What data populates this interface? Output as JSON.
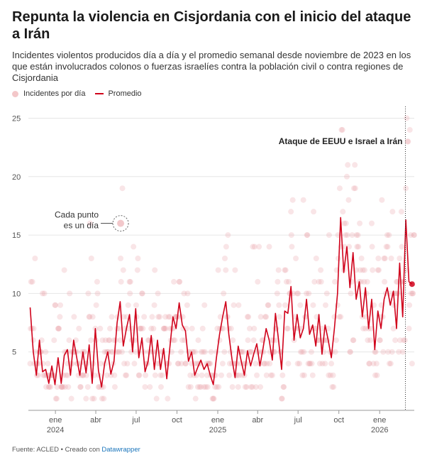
{
  "title": "Repunta la violencia en Cisjordania con el inicio del ataque a Irán",
  "subtitle": "Incidentes violentos producidos día a día y el promedio semanal desde noviembre de 2023 en los que están involucrados colonos o fuerzas israelíes contra la población civil o contra regiones de Cisjordania",
  "legend": {
    "dots": "Incidentes por día",
    "line": "Promedio"
  },
  "footer": {
    "source": "Fuente: ACLED • Creado con ",
    "tool": "Datawrapper"
  },
  "colors": {
    "line": "#d0021b",
    "dots": "#eaa3a8",
    "grid": "#e6e6e6"
  },
  "chart_data": {
    "type": "scatter",
    "ylim": [
      0,
      26
    ],
    "xlim": [
      "2023-11-01",
      "2026-03-20"
    ],
    "grid": "horizontal",
    "legend_position": "top-left",
    "yticks": [
      5,
      10,
      15,
      20,
      25
    ],
    "xticks": [
      {
        "date": "2024-01-01",
        "label": "ene",
        "sub": "2024"
      },
      {
        "date": "2024-04-01",
        "label": "abr",
        "sub": ""
      },
      {
        "date": "2024-07-01",
        "label": "jul",
        "sub": ""
      },
      {
        "date": "2024-10-01",
        "label": "oct",
        "sub": ""
      },
      {
        "date": "2025-01-01",
        "label": "ene",
        "sub": "2025"
      },
      {
        "date": "2025-04-01",
        "label": "abr",
        "sub": ""
      },
      {
        "date": "2025-07-01",
        "label": "jul",
        "sub": ""
      },
      {
        "date": "2025-10-01",
        "label": "oct",
        "sub": ""
      },
      {
        "date": "2026-01-01",
        "label": "ene",
        "sub": "2026"
      }
    ],
    "annotations": [
      {
        "text_lines": [
          "Cada punto",
          "es un día"
        ],
        "date": "2024-05-27",
        "value": 16
      },
      {
        "text": "Ataque de EEUU e Israel a Irán",
        "date": "2026-02-28"
      }
    ],
    "series": [
      {
        "name": "Promedio",
        "kind": "line",
        "x": [
          "2023-11-05",
          "2023-11-12",
          "2023-11-19",
          "2023-11-26",
          "2023-12-03",
          "2023-12-10",
          "2023-12-17",
          "2023-12-24",
          "2023-12-31",
          "2024-01-07",
          "2024-01-14",
          "2024-01-21",
          "2024-01-28",
          "2024-02-04",
          "2024-02-11",
          "2024-02-18",
          "2024-02-25",
          "2024-03-03",
          "2024-03-10",
          "2024-03-17",
          "2024-03-24",
          "2024-03-31",
          "2024-04-07",
          "2024-04-14",
          "2024-04-21",
          "2024-04-28",
          "2024-05-05",
          "2024-05-12",
          "2024-05-19",
          "2024-05-26",
          "2024-06-02",
          "2024-06-09",
          "2024-06-16",
          "2024-06-23",
          "2024-06-30",
          "2024-07-07",
          "2024-07-14",
          "2024-07-21",
          "2024-07-28",
          "2024-08-04",
          "2024-08-11",
          "2024-08-18",
          "2024-08-25",
          "2024-09-01",
          "2024-09-08",
          "2024-09-15",
          "2024-09-22",
          "2024-09-29",
          "2024-10-06",
          "2024-10-13",
          "2024-10-20",
          "2024-10-27",
          "2024-11-03",
          "2024-11-10",
          "2024-11-17",
          "2024-11-24",
          "2024-12-01",
          "2024-12-08",
          "2024-12-15",
          "2024-12-22",
          "2024-12-29",
          "2025-01-05",
          "2025-01-12",
          "2025-01-19",
          "2025-01-26",
          "2025-02-02",
          "2025-02-09",
          "2025-02-16",
          "2025-02-23",
          "2025-03-02",
          "2025-03-09",
          "2025-03-16",
          "2025-03-23",
          "2025-03-30",
          "2025-04-06",
          "2025-04-13",
          "2025-04-20",
          "2025-04-27",
          "2025-05-04",
          "2025-05-11",
          "2025-05-18",
          "2025-05-25",
          "2025-06-01",
          "2025-06-08",
          "2025-06-15",
          "2025-06-22",
          "2025-06-29",
          "2025-07-06",
          "2025-07-13",
          "2025-07-20",
          "2025-07-27",
          "2025-08-03",
          "2025-08-10",
          "2025-08-17",
          "2025-08-24",
          "2025-08-31",
          "2025-09-07",
          "2025-09-14",
          "2025-09-21",
          "2025-09-28",
          "2025-10-05",
          "2025-10-12",
          "2025-10-19",
          "2025-10-26",
          "2025-11-02",
          "2025-11-09",
          "2025-11-16",
          "2025-11-23",
          "2025-11-30",
          "2025-12-07",
          "2025-12-14",
          "2025-12-21",
          "2025-12-28",
          "2026-01-04",
          "2026-01-11",
          "2026-01-18",
          "2026-01-25",
          "2026-02-01",
          "2026-02-08",
          "2026-02-15",
          "2026-02-22",
          "2026-03-01",
          "2026-03-08",
          "2026-03-15"
        ],
        "values": [
          8.8,
          5.0,
          3.0,
          6.0,
          3.3,
          3.5,
          2.3,
          3.8,
          2.2,
          4.5,
          2.3,
          4.7,
          5.2,
          3.0,
          6.0,
          4.5,
          3.0,
          5.0,
          3.2,
          5.6,
          2.3,
          7.0,
          3.4,
          2.0,
          4.0,
          5.0,
          3.1,
          4.2,
          7.5,
          9.3,
          5.5,
          7.0,
          8.2,
          5.0,
          8.7,
          4.5,
          6.2,
          3.3,
          4.2,
          6.4,
          3.5,
          6.0,
          3.5,
          5.3,
          2.7,
          5.4,
          8.0,
          7.0,
          9.2,
          7.3,
          6.8,
          4.2,
          5.0,
          3.0,
          3.7,
          4.3,
          3.5,
          4.0,
          3.0,
          2.2,
          4.5,
          6.5,
          8.0,
          9.3,
          6.5,
          4.4,
          2.8,
          5.5,
          4.2,
          3.0,
          5.1,
          3.8,
          4.8,
          5.7,
          3.8,
          5.3,
          7.0,
          6.0,
          4.3,
          8.3,
          6.0,
          3.5,
          8.5,
          8.3,
          10.6,
          6.0,
          8.2,
          6.2,
          7.0,
          9.5,
          6.5,
          7.3,
          5.5,
          8.2,
          4.8,
          7.3,
          6.0,
          4.5,
          7.0,
          10.0,
          16.5,
          11.8,
          14.0,
          10.5,
          13.5,
          9.5,
          11.0,
          8.0,
          10.5,
          7.0,
          9.5,
          5.2,
          8.5,
          7.0,
          9.5,
          10.5,
          9.0,
          10.2,
          7.0,
          12.6,
          8.0,
          16.3,
          11.0,
          10.8
        ]
      }
    ],
    "scatter_note": "Each faded dot is one day's incident count; shown as a deterministic sample around the weekly average"
  }
}
